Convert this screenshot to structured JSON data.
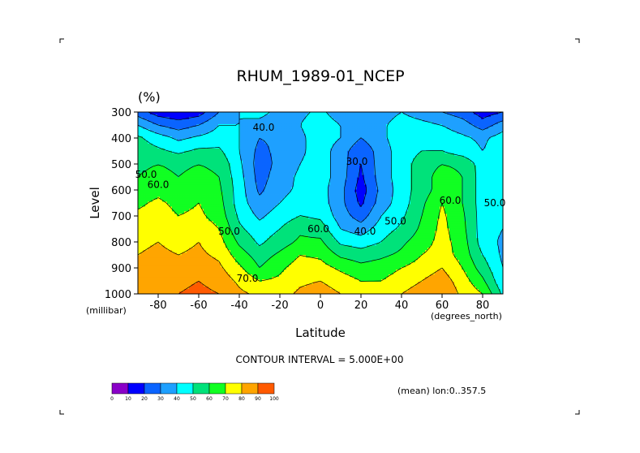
{
  "chart_data": {
    "type": "heatmap",
    "title": "RHUM_1989-01_NCEP",
    "units": "(%)",
    "xlabel": "Latitude",
    "x_units": "(degrees_north)",
    "ylabel": "Level",
    "y_units": "(millibar)",
    "xlim": [
      -90,
      90
    ],
    "ylim": [
      1000,
      300
    ],
    "x_ticks": [
      "-80",
      "-60",
      "-40",
      "-20",
      "0",
      "20",
      "40",
      "60",
      "80"
    ],
    "x_tick_values": [
      -80,
      -60,
      -40,
      -20,
      0,
      20,
      40,
      60,
      80
    ],
    "y_ticks": [
      "300",
      "400",
      "500",
      "600",
      "700",
      "800",
      "900",
      "1000"
    ],
    "y_tick_values": [
      300,
      400,
      500,
      600,
      700,
      800,
      900,
      1000
    ],
    "contour_interval_text": "CONTOUR INTERVAL = 5.000E+00",
    "subset_text": "(mean) lon:0..357.5",
    "levels": [
      0,
      10,
      20,
      30,
      40,
      50,
      60,
      70,
      80,
      90,
      100
    ],
    "colorbar_labels": [
      "0",
      "10",
      "20",
      "30",
      "40",
      "50",
      "60",
      "70",
      "80",
      "90",
      "100"
    ],
    "colors": [
      "#8a00c8",
      "#0000ff",
      "#0a64ff",
      "#1ea0ff",
      "#00ffff",
      "#00e27a",
      "#11ff22",
      "#ffff00",
      "#ffa500",
      "#ff5a00",
      "#ff0000"
    ],
    "contour_labels": [
      {
        "text": "40.0",
        "lat": -28,
        "lev": 360
      },
      {
        "text": "30.0",
        "lat": 18,
        "lev": 490
      },
      {
        "text": "50.0",
        "lat": -90,
        "lev": 540
      },
      {
        "text": "60.0",
        "lat": -80,
        "lev": 580
      },
      {
        "text": "60.0",
        "lat": 64,
        "lev": 640
      },
      {
        "text": "50.0",
        "lat": 86,
        "lev": 650
      },
      {
        "text": "50.0",
        "lat": -45,
        "lev": 760
      },
      {
        "text": "40.0",
        "lat": 22,
        "lev": 760
      },
      {
        "text": "50.0",
        "lat": 37,
        "lev": 720
      },
      {
        "text": "60.0",
        "lat": -1,
        "lev": 750
      },
      {
        "text": "70.0",
        "lat": -36,
        "lev": 940
      }
    ],
    "grid_lat": [
      -90,
      -80,
      -70,
      -60,
      -50,
      -40,
      -30,
      -20,
      -10,
      0,
      10,
      20,
      30,
      40,
      50,
      60,
      70,
      80,
      90
    ],
    "grid_lev": [
      300,
      350,
      400,
      450,
      500,
      550,
      600,
      650,
      700,
      750,
      800,
      850,
      900,
      950,
      1000
    ],
    "values": [
      [
        25,
        15,
        12,
        15,
        30,
        40,
        45,
        35,
        38,
        42,
        35,
        30,
        35,
        40,
        35,
        30,
        25,
        15,
        20
      ],
      [
        40,
        30,
        25,
        30,
        40,
        40,
        35,
        30,
        40,
        45,
        40,
        33,
        38,
        45,
        43,
        40,
        35,
        25,
        35
      ],
      [
        52,
        45,
        38,
        42,
        45,
        40,
        30,
        32,
        38,
        45,
        40,
        30,
        38,
        45,
        46,
        45,
        42,
        38,
        45
      ],
      [
        55,
        52,
        48,
        52,
        52,
        40,
        27,
        33,
        38,
        45,
        35,
        22,
        35,
        45,
        50,
        50,
        45,
        40,
        45
      ],
      [
        58,
        60,
        58,
        60,
        58,
        42,
        25,
        33,
        40,
        45,
        35,
        20,
        35,
        45,
        55,
        60,
        58,
        45,
        45
      ],
      [
        60,
        63,
        60,
        63,
        60,
        44,
        26,
        35,
        42,
        45,
        35,
        18,
        35,
        45,
        55,
        65,
        60,
        45,
        45
      ],
      [
        65,
        67,
        64,
        67,
        62,
        45,
        28,
        37,
        42,
        44,
        33,
        15,
        33,
        45,
        55,
        65,
        60,
        45,
        45
      ],
      [
        68,
        72,
        67,
        70,
        64,
        45,
        33,
        40,
        45,
        45,
        33,
        18,
        35,
        45,
        58,
        70,
        60,
        45,
        45
      ],
      [
        72,
        75,
        70,
        72,
        66,
        48,
        38,
        45,
        50,
        48,
        35,
        25,
        40,
        48,
        60,
        72,
        62,
        45,
        40
      ],
      [
        75,
        78,
        74,
        76,
        70,
        52,
        44,
        50,
        58,
        55,
        40,
        35,
        45,
        52,
        62,
        73,
        63,
        45,
        40
      ],
      [
        78,
        80,
        77,
        80,
        74,
        58,
        48,
        55,
        62,
        62,
        48,
        45,
        50,
        58,
        65,
        74,
        65,
        45,
        38
      ],
      [
        80,
        82,
        80,
        82,
        78,
        65,
        55,
        62,
        70,
        68,
        58,
        55,
        58,
        62,
        70,
        75,
        66,
        50,
        38
      ],
      [
        82,
        84,
        83,
        86,
        82,
        72,
        60,
        68,
        75,
        74,
        68,
        63,
        65,
        70,
        75,
        80,
        70,
        55,
        40
      ],
      [
        84,
        86,
        87,
        90,
        86,
        78,
        70,
        72,
        78,
        80,
        75,
        70,
        70,
        75,
        80,
        85,
        75,
        62,
        42
      ],
      [
        86,
        88,
        90,
        93,
        90,
        82,
        78,
        76,
        82,
        85,
        80,
        75,
        75,
        80,
        85,
        88,
        78,
        70,
        48
      ]
    ]
  }
}
